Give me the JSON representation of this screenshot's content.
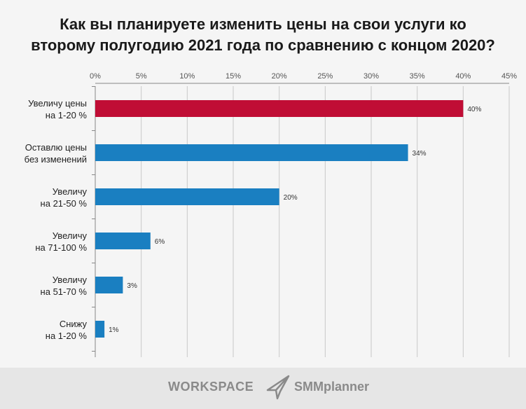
{
  "chart_data": {
    "type": "bar",
    "orientation": "horizontal",
    "title": "Как вы планируете изменить цены на свои услуги ко второму полугодию 2021 года по сравнению с концом 2020?",
    "title_lines": [
      "Как вы планируете изменить цены на свои услуги ко",
      "второму полугодию 2021 года по сравнению с концом 2020?"
    ],
    "categories": [
      [
        "Увеличу цены",
        "на 1-20 %"
      ],
      [
        "Оставлю цены",
        "без изменений"
      ],
      [
        "Увеличу",
        "на 21-50 %"
      ],
      [
        "Увеличу",
        "на 71-100 %"
      ],
      [
        "Увеличу",
        "на 51-70 %"
      ],
      [
        "Снижу",
        "на 1-20 %"
      ]
    ],
    "values": [
      40,
      34,
      20,
      6,
      3,
      1
    ],
    "data_labels": [
      "40%",
      "34%",
      "20%",
      "6%",
      "3%",
      "1%"
    ],
    "bar_colors": [
      "#c00d35",
      "#1a7fc1",
      "#1a7fc1",
      "#1a7fc1",
      "#1a7fc1",
      "#1a7fc1"
    ],
    "xlim": [
      0,
      45
    ],
    "xticks": [
      0,
      5,
      10,
      15,
      20,
      25,
      30,
      35,
      40,
      45
    ],
    "xtick_labels": [
      "0%",
      "5%",
      "10%",
      "15%",
      "20%",
      "25%",
      "30%",
      "35%",
      "40%",
      "45%"
    ],
    "x_axis_position": "top",
    "grid": true
  },
  "footer": {
    "logos": [
      "WORKSPACE",
      "SMMplanner"
    ]
  }
}
